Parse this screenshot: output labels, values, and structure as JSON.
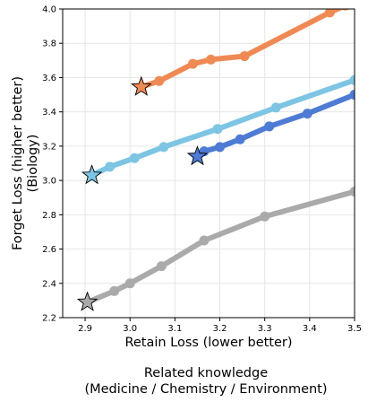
{
  "chart_data": {
    "type": "line",
    "xlabel": "Retain Loss (lower better)",
    "ylabel_lines": [
      "Forget Loss (higher better)",
      "(Biology)"
    ],
    "caption_lines": [
      "Related knowledge",
      "(Medicine / Chemistry / Environment)"
    ],
    "xlim": [
      2.85,
      3.5
    ],
    "ylim": [
      2.2,
      4.0
    ],
    "xticks": [
      "2.9",
      "3.0",
      "3.1",
      "3.2",
      "3.3",
      "3.4",
      "3.5"
    ],
    "yticks": [
      "2.2",
      "2.4",
      "2.6",
      "2.8",
      "3.0",
      "3.2",
      "3.4",
      "3.6",
      "3.8",
      "4.0"
    ],
    "grid": true,
    "series": [
      {
        "color": "#aaaaaa",
        "x": [
          2.905,
          2.965,
          3.0,
          3.07,
          3.165,
          3.3,
          3.5
        ],
        "y": [
          2.29,
          2.355,
          2.4,
          2.5,
          2.65,
          2.79,
          2.935
        ],
        "star_index": 0
      },
      {
        "color": "#7ec4e3",
        "x": [
          2.915,
          2.955,
          3.01,
          3.075,
          3.195,
          3.325,
          3.5
        ],
        "y": [
          3.03,
          3.08,
          3.13,
          3.195,
          3.3,
          3.425,
          3.585
        ],
        "star_index": 0
      },
      {
        "color": "#4e7bd3",
        "x": [
          3.15,
          3.165,
          3.2,
          3.245,
          3.31,
          3.395,
          3.5
        ],
        "y": [
          3.14,
          3.17,
          3.195,
          3.24,
          3.315,
          3.39,
          3.5
        ],
        "star_index": 0
      },
      {
        "color": "#ef8a55",
        "x": [
          3.025,
          3.065,
          3.14,
          3.18,
          3.255,
          3.445,
          3.48
        ],
        "y": [
          3.545,
          3.58,
          3.68,
          3.705,
          3.725,
          3.98,
          4.02
        ],
        "star_index": 0
      }
    ]
  }
}
